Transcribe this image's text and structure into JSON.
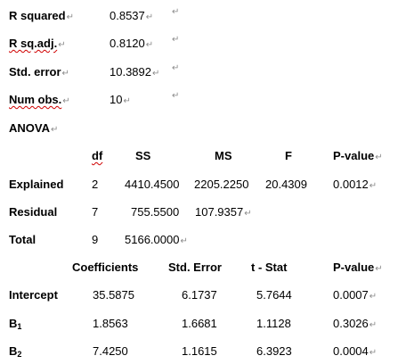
{
  "summary": {
    "r_squared": {
      "label": "R squared",
      "value": "0.8537"
    },
    "r_sq_adj": {
      "label": "R sq.adj.",
      "value": "0.8120"
    },
    "std_error": {
      "label": "Std. error",
      "value": "10.3892"
    },
    "num_obs": {
      "label": "Num obs.",
      "value": "10"
    }
  },
  "anova": {
    "title": "ANOVA",
    "headers": {
      "df": "df",
      "ss": "SS",
      "ms": "MS",
      "f": "F",
      "p": "P-value"
    },
    "explained": {
      "label": "Explained",
      "df": "2",
      "ss": "4410.4500",
      "ms": "2205.2250",
      "f": "20.4309",
      "p": "0.0012"
    },
    "residual": {
      "label": "Residual",
      "df": "7",
      "ss": "755.5500",
      "ms": "107.9357"
    },
    "total": {
      "label": "Total",
      "df": "9",
      "ss": "5166.0000"
    }
  },
  "coefficients": {
    "headers": {
      "coef": "Coefficients",
      "se": "Std. Error",
      "t": "t - Stat",
      "p": "P-value"
    },
    "intercept": {
      "label": "Intercept",
      "coef": "35.5875",
      "se": "6.1737",
      "t": "5.7644",
      "p": "0.0007"
    },
    "b1": {
      "label_main": "B",
      "label_sub": "1",
      "coef": "1.8563",
      "se": "1.6681",
      "t": "1.1128",
      "p": "0.3026"
    },
    "b2": {
      "label_main": "B",
      "label_sub": "2",
      "coef": "7.4250",
      "se": "1.1615",
      "t": "6.3923",
      "p": "0.0004"
    }
  },
  "marks": {
    "paragraph": "↵",
    "cell": "↵"
  }
}
